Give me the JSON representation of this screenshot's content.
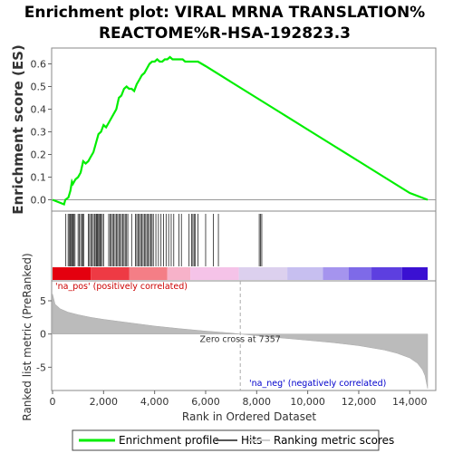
{
  "chart_data": {
    "type": "line",
    "title_line1": "Enrichment plot: VIRAL MRNA TRANSLATION%",
    "title_line2": "REACTOME%R-HSA-192823.3",
    "es_panel": {
      "ylabel": "Enrichment score (ES)",
      "ylim": [
        -0.05,
        0.67
      ],
      "yticks": [
        0.0,
        0.1,
        0.2,
        0.3,
        0.4,
        0.5,
        0.6
      ],
      "ytick_labels": [
        "0.0",
        "0.1",
        "0.2",
        "0.3",
        "0.4",
        "0.5",
        "0.6"
      ],
      "series": [
        {
          "name": "Enrichment profile",
          "color": "#00ee00",
          "x": [
            0,
            450,
            500,
            620,
            700,
            760,
            800,
            900,
            1000,
            1100,
            1200,
            1300,
            1400,
            1500,
            1600,
            1700,
            1800,
            1900,
            2000,
            2100,
            2200,
            2300,
            2400,
            2500,
            2600,
            2700,
            2800,
            2900,
            3000,
            3100,
            3200,
            3300,
            3400,
            3500,
            3600,
            3700,
            3800,
            3900,
            4000,
            4100,
            4200,
            4300,
            4400,
            4500,
            4600,
            4700,
            4800,
            4900,
            5000,
            5100,
            5200,
            5300,
            5400,
            5500,
            5600,
            5700,
            6000,
            7000,
            8000,
            9000,
            10000,
            11000,
            12000,
            13000,
            14000,
            14700
          ],
          "y": [
            0.0,
            -0.02,
            0.0,
            0.01,
            0.04,
            0.08,
            0.07,
            0.09,
            0.1,
            0.12,
            0.17,
            0.16,
            0.17,
            0.19,
            0.21,
            0.25,
            0.29,
            0.3,
            0.33,
            0.32,
            0.34,
            0.36,
            0.38,
            0.4,
            0.45,
            0.46,
            0.49,
            0.5,
            0.49,
            0.49,
            0.48,
            0.51,
            0.53,
            0.55,
            0.56,
            0.58,
            0.6,
            0.61,
            0.61,
            0.62,
            0.61,
            0.61,
            0.62,
            0.62,
            0.63,
            0.62,
            0.62,
            0.62,
            0.62,
            0.62,
            0.61,
            0.61,
            0.61,
            0.61,
            0.61,
            0.61,
            0.59,
            0.52,
            0.45,
            0.38,
            0.31,
            0.24,
            0.17,
            0.1,
            0.03,
            0.0
          ]
        }
      ]
    },
    "hits": [
      520,
      610,
      650,
      690,
      720,
      760,
      800,
      830,
      880,
      1000,
      1050,
      1100,
      1150,
      1180,
      1220,
      1400,
      1450,
      1500,
      1550,
      1600,
      1650,
      1700,
      1720,
      1750,
      1780,
      1820,
      1860,
      1900,
      1950,
      2000,
      2200,
      2250,
      2300,
      2350,
      2400,
      2450,
      2500,
      2550,
      2600,
      2650,
      2700,
      2750,
      2800,
      2850,
      2900,
      2950,
      3100,
      3250,
      3300,
      3350,
      3400,
      3450,
      3500,
      3550,
      3600,
      3650,
      3700,
      3750,
      3800,
      3850,
      3900,
      3950,
      4050,
      4150,
      4250,
      4350,
      4450,
      4550,
      4650,
      4750,
      4950,
      5050,
      5350,
      5450,
      5500,
      5550,
      5600,
      5700,
      6000,
      6300,
      6500,
      8100,
      8150,
      8200
    ],
    "color_bar": {
      "colors": [
        "#e4000f",
        "#ee3a44",
        "#f47e86",
        "#f7b2c9",
        "#f5c3e8",
        "#dcd0ee",
        "#c7bff0",
        "#a594ee",
        "#7e6ae8",
        "#5d3fe0",
        "#3a10d2"
      ],
      "breaks": [
        0,
        1500,
        3000,
        4500,
        5400,
        7300,
        9200,
        10600,
        11600,
        12500,
        13700,
        14700
      ]
    },
    "rank_panel": {
      "ylabel": "Ranked list metric (PreRanked)",
      "ylim": [
        -8.5,
        8.0
      ],
      "yticks": [
        5,
        0,
        -5
      ],
      "ytick_labels": [
        "5",
        "0",
        "-5"
      ],
      "x": [
        0,
        100,
        300,
        600,
        1000,
        1500,
        2000,
        3000,
        4000,
        5000,
        6000,
        7000,
        7357,
        8000,
        9000,
        10000,
        11000,
        12000,
        13000,
        13500,
        14000,
        14300,
        14500,
        14600,
        14650,
        14700
      ],
      "y": [
        6.0,
        4.5,
        3.8,
        3.3,
        2.9,
        2.5,
        2.2,
        1.7,
        1.2,
        0.8,
        0.45,
        0.15,
        0.0,
        -0.25,
        -0.6,
        -0.95,
        -1.3,
        -1.75,
        -2.4,
        -2.9,
        -3.6,
        -4.4,
        -5.4,
        -6.3,
        -7.3,
        -8.2
      ],
      "zero_cross_label": "Zero cross at 7357",
      "zero_cross_x": 7357,
      "pos_label": "'na_pos' (positively correlated)",
      "neg_label": "'na_neg' (negatively correlated)",
      "pos_color": "#cc0000",
      "neg_color": "#0000cc"
    },
    "xlabel": "Rank in Ordered Dataset",
    "xlim": [
      0,
      14700
    ],
    "xticks": [
      0,
      2000,
      4000,
      6000,
      8000,
      10000,
      12000,
      14000
    ],
    "xtick_labels": [
      "0",
      "2,000",
      "4,000",
      "6,000",
      "8,000",
      "10,000",
      "12,000",
      "14,000"
    ],
    "legend": {
      "items": [
        {
          "label": "Enrichment profile",
          "color": "#00ee00"
        },
        {
          "label": "Hits",
          "color": "#555555"
        },
        {
          "label": "Ranking metric scores",
          "color": "#cccccc"
        }
      ],
      "placement": "bottom"
    }
  }
}
